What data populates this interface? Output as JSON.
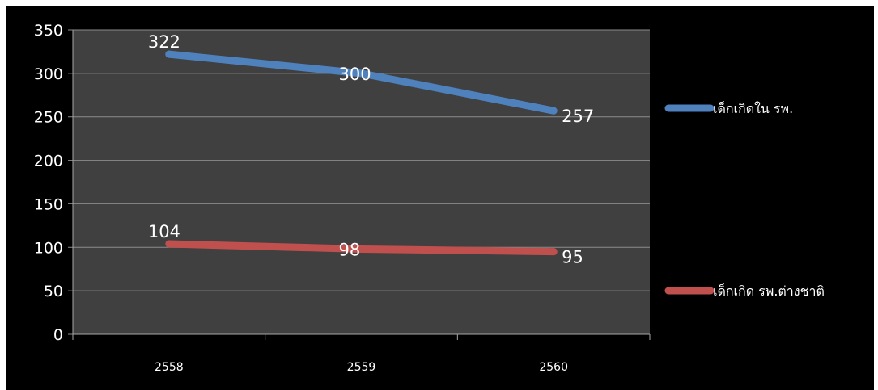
{
  "chart_data": {
    "type": "line",
    "categories": [
      "2558",
      "2559",
      "2560"
    ],
    "series": [
      {
        "name": "เด็กเกิดใน รพ.",
        "values": [
          322,
          300,
          257
        ],
        "color": "#4f81bd"
      },
      {
        "name": "เด็กเกิด รพ.ต่างชาติ",
        "values": [
          104,
          98,
          95
        ],
        "color": "#c0504d"
      }
    ],
    "yticks": [
      "0",
      "50",
      "100",
      "150",
      "200",
      "250",
      "300",
      "350"
    ],
    "ylim": [
      0,
      350
    ],
    "grid": true,
    "legend": "right",
    "plot_background": "#404040",
    "background": "#000000"
  }
}
